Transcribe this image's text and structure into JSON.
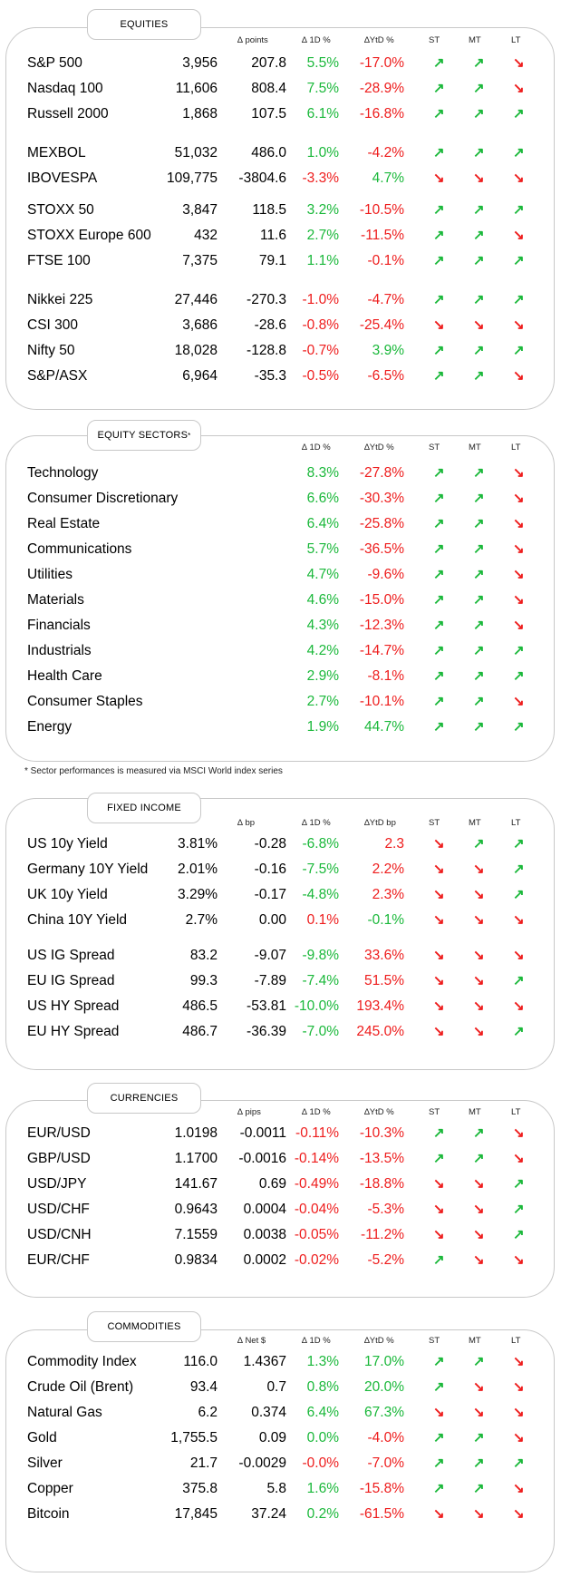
{
  "colors": {
    "positive": "#1ab83a",
    "negative": "#ee1c1c",
    "border": "#c8c8c8"
  },
  "trend_icons": {
    "up": "up-right-arrow-icon",
    "down": "down-right-arrow-icon"
  },
  "sections": [
    {
      "title": "EQUITIES",
      "headers": {
        "delta": "∆ points",
        "d1": "∆ 1D %",
        "ytd": "∆YtD %",
        "st": "ST",
        "mt": "MT",
        "lt": "LT"
      },
      "groups": [
        [
          {
            "name": "S&P 500",
            "level": "3,956",
            "delta": "207.8",
            "d1": "5.5%",
            "d1_sign": "pos",
            "ytd": "-17.0%",
            "ytd_sign": "neg",
            "st": "up",
            "mt": "up",
            "lt": "down"
          },
          {
            "name": "Nasdaq 100",
            "level": "11,606",
            "delta": "808.4",
            "d1": "7.5%",
            "d1_sign": "pos",
            "ytd": "-28.9%",
            "ytd_sign": "neg",
            "st": "up",
            "mt": "up",
            "lt": "down"
          },
          {
            "name": "Russell 2000",
            "level": "1,868",
            "delta": "107.5",
            "d1": "6.1%",
            "d1_sign": "pos",
            "ytd": "-16.8%",
            "ytd_sign": "neg",
            "st": "up",
            "mt": "up",
            "lt": "up"
          }
        ],
        [
          {
            "name": "MEXBOL",
            "level": "51,032",
            "delta": "486.0",
            "d1": "1.0%",
            "d1_sign": "pos",
            "ytd": "-4.2%",
            "ytd_sign": "neg",
            "st": "up",
            "mt": "up",
            "lt": "up"
          },
          {
            "name": "IBOVESPA",
            "level": "109,775",
            "delta": "-3804.6",
            "d1": "-3.3%",
            "d1_sign": "neg",
            "ytd": "4.7%",
            "ytd_sign": "pos",
            "st": "down",
            "mt": "down",
            "lt": "down"
          }
        ],
        [
          {
            "name": "STOXX 50",
            "level": "3,847",
            "delta": "118.5",
            "d1": "3.2%",
            "d1_sign": "pos",
            "ytd": "-10.5%",
            "ytd_sign": "neg",
            "st": "up",
            "mt": "up",
            "lt": "up"
          },
          {
            "name": "STOXX Europe 600",
            "level": "432",
            "delta": "11.6",
            "d1": "2.7%",
            "d1_sign": "pos",
            "ytd": "-11.5%",
            "ytd_sign": "neg",
            "st": "up",
            "mt": "up",
            "lt": "down"
          },
          {
            "name": "FTSE 100",
            "level": "7,375",
            "delta": "79.1",
            "d1": "1.1%",
            "d1_sign": "pos",
            "ytd": "-0.1%",
            "ytd_sign": "neg",
            "st": "up",
            "mt": "up",
            "lt": "up"
          }
        ],
        [
          {
            "name": "Nikkei 225",
            "level": "27,446",
            "delta": "-270.3",
            "d1": "-1.0%",
            "d1_sign": "neg",
            "ytd": "-4.7%",
            "ytd_sign": "neg",
            "st": "up",
            "mt": "up",
            "lt": "up"
          },
          {
            "name": "CSI 300",
            "level": "3,686",
            "delta": "-28.6",
            "d1": "-0.8%",
            "d1_sign": "neg",
            "ytd": "-25.4%",
            "ytd_sign": "neg",
            "st": "down",
            "mt": "down",
            "lt": "down"
          },
          {
            "name": "Nifty  50",
            "level": "18,028",
            "delta": "-128.8",
            "d1": "-0.7%",
            "d1_sign": "neg",
            "ytd": "3.9%",
            "ytd_sign": "pos",
            "st": "up",
            "mt": "up",
            "lt": "up"
          },
          {
            "name": "S&P/ASX",
            "level": "6,964",
            "delta": "-35.3",
            "d1": "-0.5%",
            "d1_sign": "neg",
            "ytd": "-6.5%",
            "ytd_sign": "neg",
            "st": "up",
            "mt": "up",
            "lt": "down"
          }
        ]
      ]
    },
    {
      "title": "EQUITY SECTORS",
      "title_sup": "*",
      "headers": {
        "d1": "∆ 1D %",
        "ytd": "∆YtD %",
        "st": "ST",
        "mt": "MT",
        "lt": "LT"
      },
      "groups": [
        [
          {
            "name": "Technology",
            "d1": "8.3%",
            "d1_sign": "pos",
            "ytd": "-27.8%",
            "ytd_sign": "neg",
            "st": "up",
            "mt": "up",
            "lt": "down"
          },
          {
            "name": "Consumer Discretionary",
            "d1": "6.6%",
            "d1_sign": "pos",
            "ytd": "-30.3%",
            "ytd_sign": "neg",
            "st": "up",
            "mt": "up",
            "lt": "down"
          },
          {
            "name": "Real Estate",
            "d1": "6.4%",
            "d1_sign": "pos",
            "ytd": "-25.8%",
            "ytd_sign": "neg",
            "st": "up",
            "mt": "up",
            "lt": "down"
          },
          {
            "name": "Communications",
            "d1": "5.7%",
            "d1_sign": "pos",
            "ytd": "-36.5%",
            "ytd_sign": "neg",
            "st": "up",
            "mt": "up",
            "lt": "down"
          },
          {
            "name": "Utilities",
            "d1": "4.7%",
            "d1_sign": "pos",
            "ytd": "-9.6%",
            "ytd_sign": "neg",
            "st": "up",
            "mt": "up",
            "lt": "down"
          },
          {
            "name": "Materials",
            "d1": "4.6%",
            "d1_sign": "pos",
            "ytd": "-15.0%",
            "ytd_sign": "neg",
            "st": "up",
            "mt": "up",
            "lt": "down"
          },
          {
            "name": "Financials",
            "d1": "4.3%",
            "d1_sign": "pos",
            "ytd": "-12.3%",
            "ytd_sign": "neg",
            "st": "up",
            "mt": "up",
            "lt": "down"
          },
          {
            "name": "Industrials",
            "d1": "4.2%",
            "d1_sign": "pos",
            "ytd": "-14.7%",
            "ytd_sign": "neg",
            "st": "up",
            "mt": "up",
            "lt": "up"
          },
          {
            "name": "Health Care",
            "d1": "2.9%",
            "d1_sign": "pos",
            "ytd": "-8.1%",
            "ytd_sign": "neg",
            "st": "up",
            "mt": "up",
            "lt": "up"
          },
          {
            "name": "Consumer Staples",
            "d1": "2.7%",
            "d1_sign": "pos",
            "ytd": "-10.1%",
            "ytd_sign": "neg",
            "st": "up",
            "mt": "up",
            "lt": "down"
          },
          {
            "name": "Energy",
            "d1": "1.9%",
            "d1_sign": "pos",
            "ytd": "44.7%",
            "ytd_sign": "pos",
            "st": "up",
            "mt": "up",
            "lt": "up"
          }
        ]
      ],
      "footnote": "* Sector performances is measured via MSCI World index series"
    },
    {
      "title": "FIXED INCOME",
      "headers": {
        "delta": "∆ bp",
        "d1": "∆ 1D %",
        "ytd": "∆YtD bp",
        "st": "ST",
        "mt": "MT",
        "lt": "LT"
      },
      "groups": [
        [
          {
            "name": "US 10y Yield",
            "level": "3.81%",
            "delta": "-0.28",
            "d1": "-6.8%",
            "d1_sign": "pos",
            "ytd": "2.3",
            "ytd_sign": "neg",
            "st": "down",
            "mt": "up",
            "lt": "up"
          },
          {
            "name": "Germany 10Y Yield",
            "level": "2.01%",
            "delta": "-0.16",
            "d1": "-7.5%",
            "d1_sign": "pos",
            "ytd": "2.2%",
            "ytd_sign": "neg",
            "st": "down",
            "mt": "down",
            "lt": "up"
          },
          {
            "name": "UK 10y Yield",
            "level": "3.29%",
            "delta": "-0.17",
            "d1": "-4.8%",
            "d1_sign": "pos",
            "ytd": "2.3%",
            "ytd_sign": "neg",
            "st": "down",
            "mt": "down",
            "lt": "up"
          },
          {
            "name": "China 10Y Yield",
            "level": "2.7%",
            "delta": "0.00",
            "d1": "0.1%",
            "d1_sign": "neg",
            "ytd": "-0.1%",
            "ytd_sign": "pos",
            "st": "down",
            "mt": "down",
            "lt": "down"
          }
        ],
        [
          {
            "name": "US IG Spread",
            "level": "83.2",
            "delta": "-9.07",
            "d1": "-9.8%",
            "d1_sign": "pos",
            "ytd": "33.6%",
            "ytd_sign": "neg",
            "st": "down",
            "mt": "down",
            "lt": "down"
          },
          {
            "name": "EU IG Spread",
            "level": "99.3",
            "delta": "-7.89",
            "d1": "-7.4%",
            "d1_sign": "pos",
            "ytd": "51.5%",
            "ytd_sign": "neg",
            "st": "down",
            "mt": "down",
            "lt": "up"
          },
          {
            "name": "US HY Spread",
            "level": "486.5",
            "delta": "-53.81",
            "d1": "-10.0%",
            "d1_sign": "pos",
            "ytd": "193.4%",
            "ytd_sign": "neg",
            "st": "down",
            "mt": "down",
            "lt": "down"
          },
          {
            "name": "EU HY Spread",
            "level": "486.7",
            "delta": "-36.39",
            "d1": "-7.0%",
            "d1_sign": "pos",
            "ytd": "245.0%",
            "ytd_sign": "neg",
            "st": "down",
            "mt": "down",
            "lt": "up"
          }
        ]
      ]
    },
    {
      "title": "CURRENCIES",
      "headers": {
        "delta": "∆ pips",
        "d1": "∆ 1D %",
        "ytd": "∆YtD %",
        "st": "ST",
        "mt": "MT",
        "lt": "LT"
      },
      "groups": [
        [
          {
            "name": "EUR/USD",
            "level": "1.0198",
            "delta": "-0.0011",
            "d1": "-0.11%",
            "d1_sign": "neg",
            "ytd": "-10.3%",
            "ytd_sign": "neg",
            "st": "up",
            "mt": "up",
            "lt": "down"
          },
          {
            "name": "GBP/USD",
            "level": "1.1700",
            "delta": "-0.0016",
            "d1": "-0.14%",
            "d1_sign": "neg",
            "ytd": "-13.5%",
            "ytd_sign": "neg",
            "st": "up",
            "mt": "up",
            "lt": "down"
          },
          {
            "name": "USD/JPY",
            "level": "141.67",
            "delta": "0.69",
            "d1": "-0.49%",
            "d1_sign": "neg",
            "ytd": "-18.8%",
            "ytd_sign": "neg",
            "st": "down",
            "mt": "down",
            "lt": "up"
          },
          {
            "name": "USD/CHF",
            "level": "0.9643",
            "delta": "0.0004",
            "d1": "-0.04%",
            "d1_sign": "neg",
            "ytd": "-5.3%",
            "ytd_sign": "neg",
            "st": "down",
            "mt": "down",
            "lt": "up"
          },
          {
            "name": "USD/CNH",
            "level": "7.1559",
            "delta": "0.0038",
            "d1": "-0.05%",
            "d1_sign": "neg",
            "ytd": "-11.2%",
            "ytd_sign": "neg",
            "st": "down",
            "mt": "down",
            "lt": "up"
          },
          {
            "name": "EUR/CHF",
            "level": "0.9834",
            "delta": "0.0002",
            "d1": "-0.02%",
            "d1_sign": "neg",
            "ytd": "-5.2%",
            "ytd_sign": "neg",
            "st": "up",
            "mt": "down",
            "lt": "down"
          }
        ]
      ]
    },
    {
      "title": "COMMODITIES",
      "headers": {
        "delta": "∆ Net $",
        "d1": "∆ 1D %",
        "ytd": "∆YtD %",
        "st": "ST",
        "mt": "MT",
        "lt": "LT"
      },
      "groups": [
        [
          {
            "name": "Commodity Index",
            "level": "116.0",
            "delta": "1.4367",
            "d1": "1.3%",
            "d1_sign": "pos",
            "ytd": "17.0%",
            "ytd_sign": "pos",
            "st": "up",
            "mt": "up",
            "lt": "down"
          },
          {
            "name": "Crude Oil (Brent)",
            "level": "93.4",
            "delta": "0.7",
            "d1": "0.8%",
            "d1_sign": "pos",
            "ytd": "20.0%",
            "ytd_sign": "pos",
            "st": "up",
            "mt": "down",
            "lt": "down"
          },
          {
            "name": "Natural Gas",
            "level": "6.2",
            "delta": "0.374",
            "d1": "6.4%",
            "d1_sign": "pos",
            "ytd": "67.3%",
            "ytd_sign": "pos",
            "st": "down",
            "mt": "down",
            "lt": "down"
          },
          {
            "name": "Gold",
            "level": "1,755.5",
            "delta": "0.09",
            "d1": "0.0%",
            "d1_sign": "pos",
            "ytd": "-4.0%",
            "ytd_sign": "neg",
            "st": "up",
            "mt": "up",
            "lt": "down"
          },
          {
            "name": "Silver",
            "level": "21.7",
            "delta": "-0.0029",
            "d1": "-0.0%",
            "d1_sign": "neg",
            "ytd": "-7.0%",
            "ytd_sign": "neg",
            "st": "up",
            "mt": "up",
            "lt": "up"
          },
          {
            "name": "Copper",
            "level": "375.8",
            "delta": "5.8",
            "d1": "1.6%",
            "d1_sign": "pos",
            "ytd": "-15.8%",
            "ytd_sign": "neg",
            "st": "up",
            "mt": "up",
            "lt": "down"
          },
          {
            "name": "Bitcoin",
            "level": "17,845",
            "delta": "37.24",
            "d1": "0.2%",
            "d1_sign": "pos",
            "ytd": "-61.5%",
            "ytd_sign": "neg",
            "st": "down",
            "mt": "down",
            "lt": "down"
          }
        ]
      ]
    }
  ]
}
